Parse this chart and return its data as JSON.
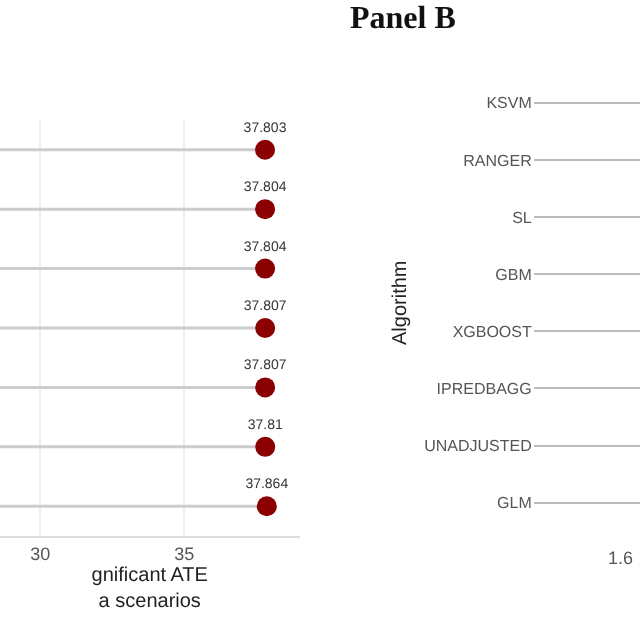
{
  "chart_data": [
    {
      "type": "lollipop",
      "orientation": "horizontal",
      "xlabel": "gnificant ATE\na scenarios",
      "categories": [
        null,
        null,
        null,
        null,
        null,
        null,
        null
      ],
      "values": [
        37.803,
        37.804,
        37.804,
        37.807,
        37.807,
        37.81,
        37.864
      ],
      "color": "#8b0000",
      "data_labels": true,
      "xlim": [
        28.6,
        39
      ],
      "xticks": [
        30,
        35
      ],
      "grid": true,
      "tick_labels": "x"
    },
    {
      "type": "other",
      "title": "Panel B",
      "ylabel": "Algorithm",
      "categories": [
        "KSVM",
        "RANGER",
        "SL",
        "GBM",
        "XGBOOST",
        "IPREDBAGG",
        "UNADJUSTED",
        "GLM"
      ],
      "values": [
        null,
        null,
        null,
        null,
        null,
        null,
        null,
        null
      ],
      "annotations": [
        "1.6"
      ]
    }
  ]
}
